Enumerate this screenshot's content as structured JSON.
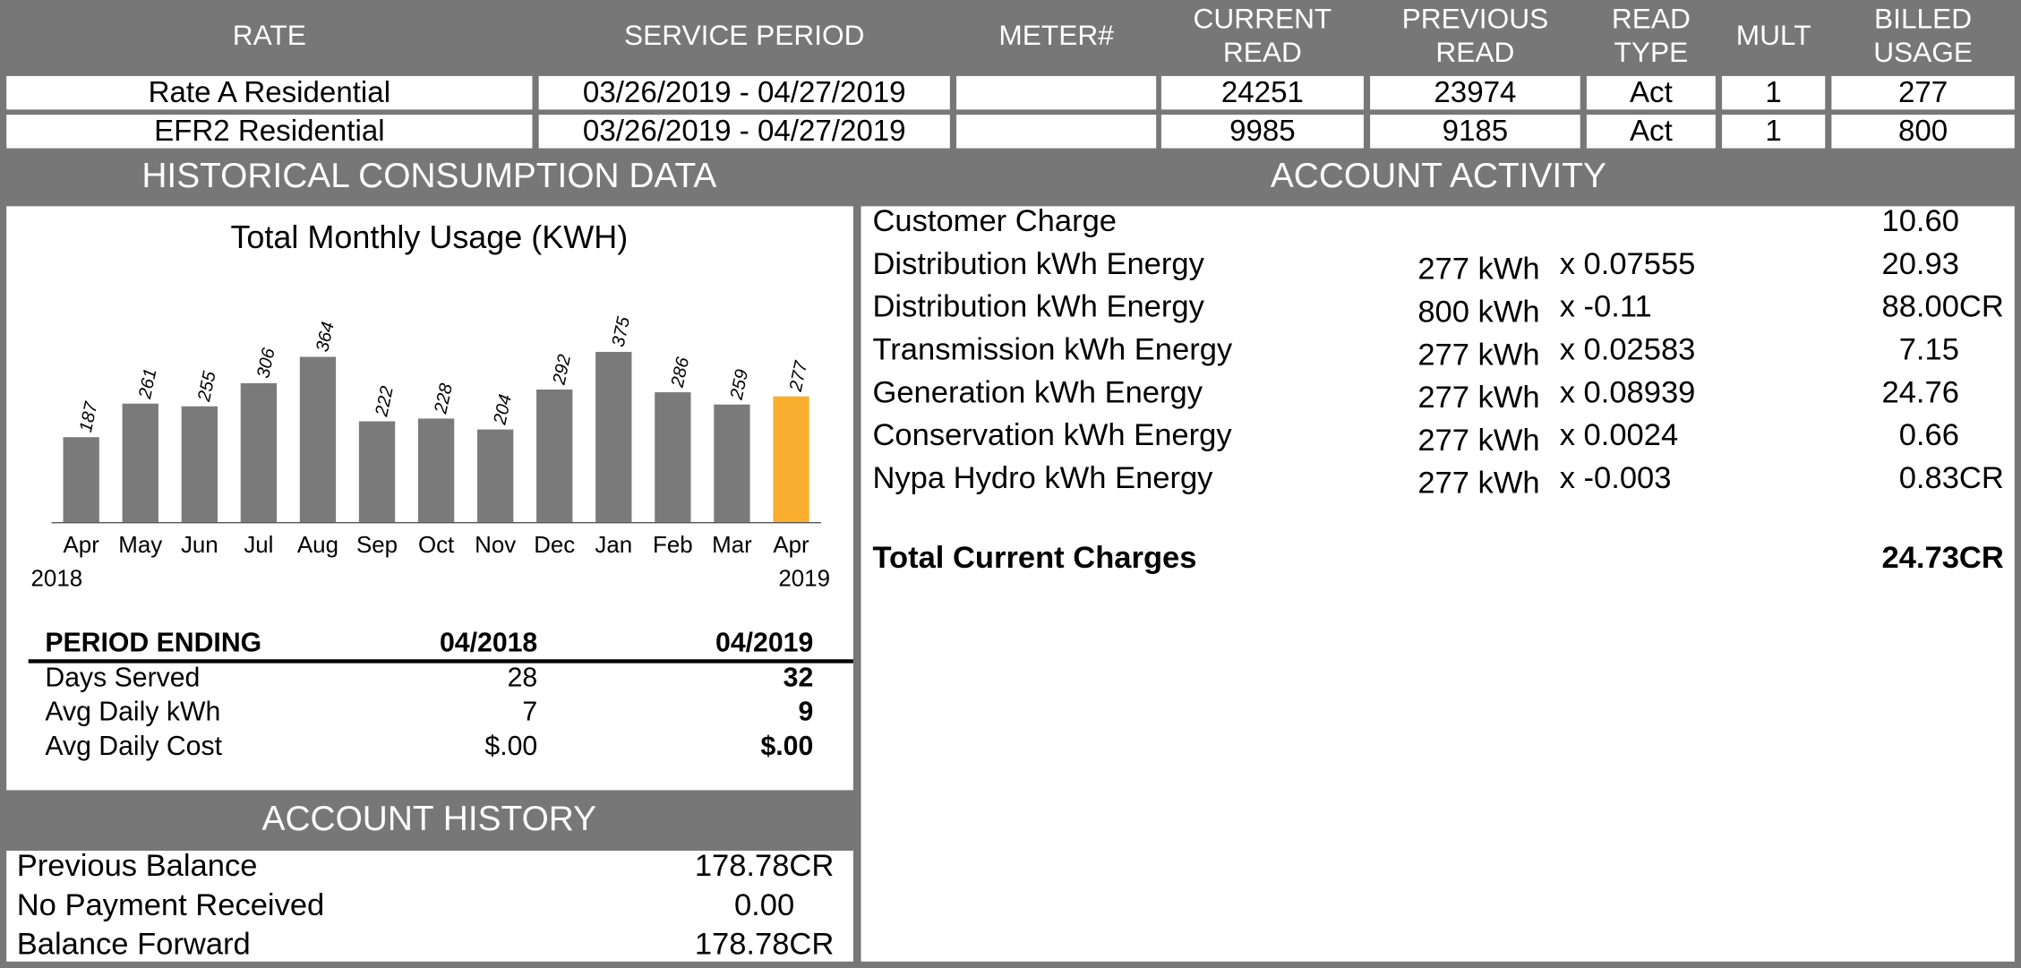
{
  "meter_table": {
    "headers": [
      [
        "RATE"
      ],
      [
        "SERVICE PERIOD"
      ],
      [
        "METER#"
      ],
      [
        "CURRENT",
        "READ"
      ],
      [
        "PREVIOUS",
        "READ"
      ],
      [
        "READ",
        "TYPE"
      ],
      [
        "MULT"
      ],
      [
        "BILLED",
        "USAGE"
      ]
    ],
    "rows": [
      [
        "Rate A Residential",
        "03/26/2019 - 04/27/2019",
        null,
        "24251",
        "23974",
        "Act",
        "1",
        "277"
      ],
      [
        "EFR2 Residential",
        "03/26/2019 - 04/27/2019",
        null,
        "9985",
        "9185",
        "Act",
        "1",
        "800"
      ]
    ]
  },
  "historical": {
    "title": "HISTORICAL CONSUMPTION DATA",
    "period_table": {
      "headers": [
        "PERIOD ENDING",
        "04/2018",
        "04/2019"
      ],
      "rows": [
        [
          "Days Served",
          "28",
          "32"
        ],
        [
          "Avg Daily kWh",
          "7",
          "9"
        ],
        [
          "Avg Daily Cost",
          "$.00",
          "$.00"
        ]
      ]
    }
  },
  "chart_data": {
    "type": "bar",
    "title": "Total Monthly Usage (KWH)",
    "categories": [
      "Apr",
      "May",
      "Jun",
      "Jul",
      "Aug",
      "Sep",
      "Oct",
      "Nov",
      "Dec",
      "Jan",
      "Feb",
      "Mar",
      "Apr"
    ],
    "values": [
      187,
      261,
      255,
      306,
      364,
      222,
      228,
      204,
      292,
      375,
      286,
      259,
      277
    ],
    "colors": [
      "#7a7a7a",
      "#7a7a7a",
      "#7a7a7a",
      "#7a7a7a",
      "#7a7a7a",
      "#7a7a7a",
      "#7a7a7a",
      "#7a7a7a",
      "#7a7a7a",
      "#7a7a7a",
      "#7a7a7a",
      "#7a7a7a",
      "#f9ae30"
    ],
    "year_labels": [
      "2018",
      "2019"
    ]
  },
  "account_activity": {
    "title": "ACCOUNT ACTIVITY",
    "rows": [
      {
        "label": "Customer Charge",
        "amount": "10.60"
      },
      {
        "label": "Distribution kWh Energy",
        "usage": "277 kWh",
        "rate": "x 0.07555",
        "amount": "20.93"
      },
      {
        "label": "Distribution kWh Energy",
        "usage": "800 kWh",
        "rate": "x -0.11",
        "amount": "88.00CR"
      },
      {
        "label": "Transmission kWh Energy",
        "usage": "277 kWh",
        "rate": "x 0.02583",
        "amount": "7.15"
      },
      {
        "label": "Generation kWh Energy",
        "usage": "277 kWh",
        "rate": "x 0.08939",
        "amount": "24.76"
      },
      {
        "label": "Conservation kWh Energy",
        "usage": "277 kWh",
        "rate": "x 0.0024",
        "amount": "0.66"
      },
      {
        "label": "Nypa Hydro kWh Energy",
        "usage": "277 kWh",
        "rate": "x -0.003",
        "amount": "0.83CR"
      }
    ],
    "total": {
      "label": "Total Current Charges",
      "amount": "24.73CR"
    }
  },
  "account_history": {
    "title": "ACCOUNT HISTORY",
    "rows": [
      [
        "Previous Balance",
        "178.78CR"
      ],
      [
        "No Payment Received",
        "0.00"
      ],
      [
        "Balance Forward",
        "178.78CR"
      ]
    ]
  }
}
